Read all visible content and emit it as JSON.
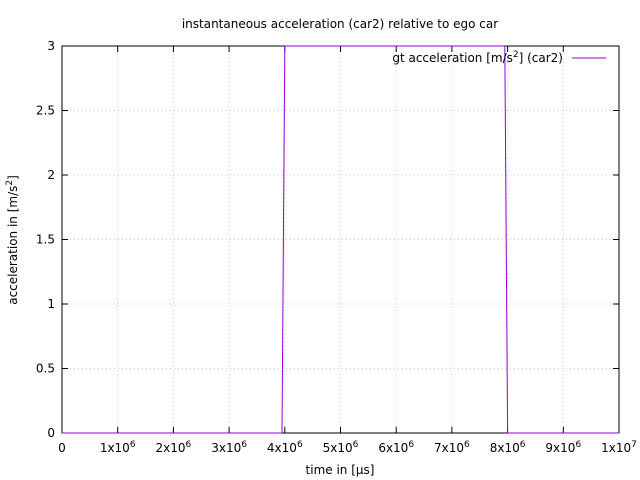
{
  "chart_data": {
    "type": "line",
    "title": "instantaneous acceleration (car2) relative to ego car",
    "xlabel": "time in [μs]",
    "ylabel_parts": [
      "acceleration in [m/s",
      "2",
      "]"
    ],
    "xlim": [
      0,
      10000000
    ],
    "ylim": [
      0,
      3
    ],
    "grid": true,
    "legend_position": "top-right",
    "x_ticks": [
      {
        "value": 0,
        "base": "0",
        "exp": ""
      },
      {
        "value": 1000000,
        "base": "1x10",
        "exp": "6"
      },
      {
        "value": 2000000,
        "base": "2x10",
        "exp": "6"
      },
      {
        "value": 3000000,
        "base": "3x10",
        "exp": "6"
      },
      {
        "value": 4000000,
        "base": "4x10",
        "exp": "6"
      },
      {
        "value": 5000000,
        "base": "5x10",
        "exp": "6"
      },
      {
        "value": 6000000,
        "base": "6x10",
        "exp": "6"
      },
      {
        "value": 7000000,
        "base": "7x10",
        "exp": "6"
      },
      {
        "value": 8000000,
        "base": "8x10",
        "exp": "6"
      },
      {
        "value": 9000000,
        "base": "9x10",
        "exp": "6"
      },
      {
        "value": 10000000,
        "base": "1x10",
        "exp": "7"
      }
    ],
    "y_ticks": [
      {
        "value": 0,
        "label": "0"
      },
      {
        "value": 0.5,
        "label": "0.5"
      },
      {
        "value": 1,
        "label": "1"
      },
      {
        "value": 1.5,
        "label": "1.5"
      },
      {
        "value": 2,
        "label": "2"
      },
      {
        "value": 2.5,
        "label": "2.5"
      },
      {
        "value": 3,
        "label": "3"
      }
    ],
    "series": [
      {
        "name_parts": [
          "gt acceleration [m/s",
          "2",
          "] (car2)"
        ],
        "color": "#9400d3",
        "x": [
          0,
          3950000,
          4000000,
          7950000,
          8000000,
          10000000
        ],
        "y": [
          0,
          0,
          3,
          3,
          0,
          0
        ]
      }
    ]
  }
}
